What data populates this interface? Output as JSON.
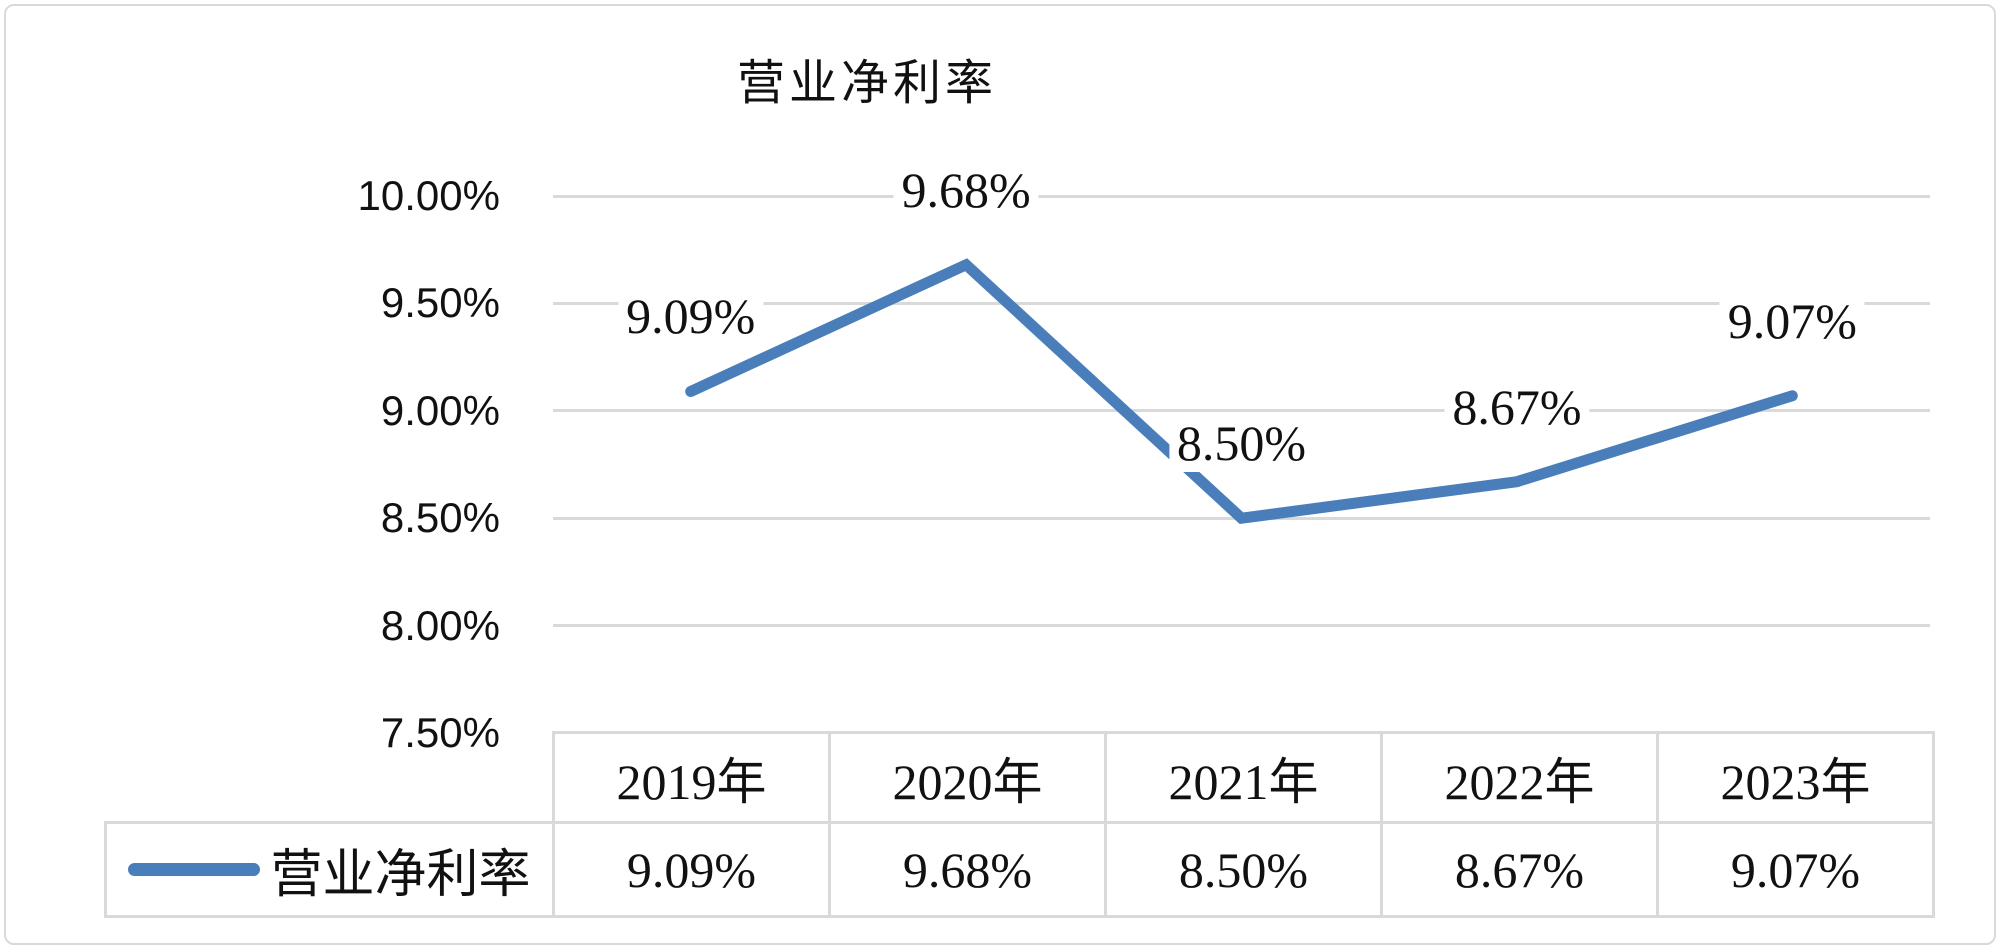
{
  "chart_data": {
    "type": "line",
    "title": "营业净利率",
    "categories": [
      "2019年",
      "2020年",
      "2021年",
      "2022年",
      "2023年"
    ],
    "series": [
      {
        "name": "营业净利率",
        "color": "#4A7EBB",
        "values": [
          9.09,
          9.68,
          8.5,
          8.67,
          9.07
        ],
        "point_labels": [
          "9.09%",
          "9.68%",
          "8.50%",
          "8.67%",
          "9.07%"
        ]
      }
    ],
    "xlabel": "",
    "ylabel": "",
    "ylim": [
      7.5,
      10.0
    ],
    "y_ticks": {
      "values": [
        10.0,
        9.5,
        9.0,
        8.5,
        8.0,
        7.5
      ],
      "labels": [
        "10.00%",
        "9.50%",
        "9.00%",
        "8.50%",
        "8.00%",
        "7.50%"
      ]
    },
    "grid": true,
    "gridline_color": "#D9D9D9",
    "legend_position": "bottom-table-left"
  },
  "table": {
    "border_color": "#D9D9D9",
    "columns": [
      "2019年",
      "2020年",
      "2021年",
      "2022年",
      "2023年"
    ],
    "rows": [
      {
        "label": "营业净利率",
        "swatch_color": "#4A7EBB",
        "values": [
          "9.09%",
          "9.68%",
          "8.50%",
          "8.67%",
          "9.07%"
        ]
      }
    ]
  }
}
